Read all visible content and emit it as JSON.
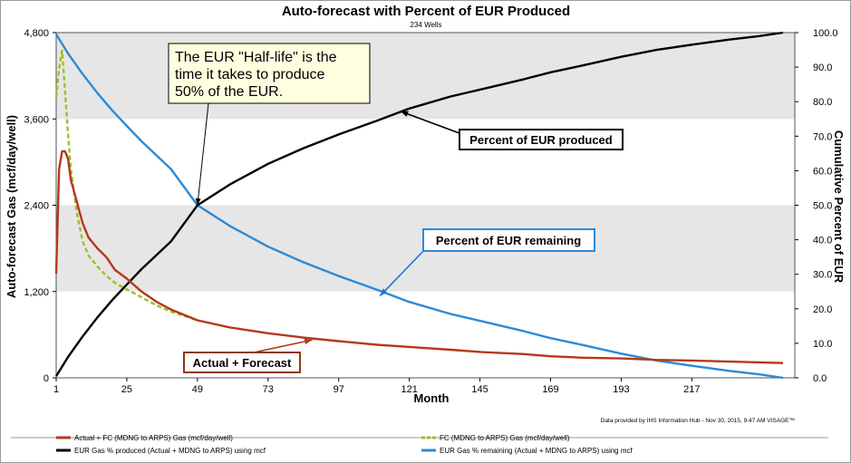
{
  "colors": {
    "band": "#e6e6e6",
    "actual": "#b5381b",
    "forecast": "#9bbf2a",
    "produced": "#000000",
    "remaining": "#2b8ad8",
    "callout_fill": "#ffffe0"
  },
  "chart_data": {
    "type": "line",
    "title": "Auto-forecast with Percent of EUR Produced",
    "subtitle": "234 Wells",
    "xlabel": "Month",
    "ylabel_left": "Auto-forecast Gas (mcf/day/well)",
    "ylabel_right": "Cumulative Percent of EUR",
    "xlim": [
      1,
      252
    ],
    "ylim_left": [
      0,
      4800
    ],
    "ylim_right": [
      0,
      100
    ],
    "x_ticks": [
      "1",
      "25",
      "49",
      "73",
      "97",
      "121",
      "145",
      "169",
      "193",
      "217"
    ],
    "y_left_ticks": [
      "0",
      "1,200",
      "2,400",
      "3,600",
      "4,800"
    ],
    "y_right_ticks": [
      "0.0",
      "10.0",
      "20.0",
      "30.0",
      "40.0",
      "50.0",
      "60.0",
      "70.0",
      "80.0",
      "90.0",
      "100.0"
    ],
    "grid_bands": true,
    "series": [
      {
        "name": "Actual + FC (MDNG to ARPS) Gas (mcf/day/well)",
        "axis": "left",
        "x": [
          1,
          2,
          3,
          4,
          5,
          6,
          7,
          8,
          10,
          12,
          15,
          18,
          21,
          25,
          30,
          35,
          40,
          49,
          60,
          73,
          85,
          97,
          110,
          121,
          135,
          145,
          160,
          169,
          180,
          193,
          205,
          217,
          230,
          248
        ],
        "values": [
          1450,
          2900,
          3150,
          3150,
          3050,
          2750,
          2600,
          2450,
          2150,
          1950,
          1800,
          1680,
          1500,
          1380,
          1200,
          1060,
          950,
          800,
          700,
          620,
          560,
          510,
          460,
          430,
          390,
          360,
          330,
          300,
          280,
          270,
          250,
          240,
          225,
          205
        ]
      },
      {
        "name": "FC (MDNG to ARPS) Gas (mcf/day/well)",
        "axis": "left",
        "x": [
          1,
          2,
          3,
          4,
          5,
          6,
          7,
          8,
          10,
          12,
          15,
          18,
          21,
          25,
          30,
          35,
          40,
          49
        ],
        "values": [
          3900,
          4300,
          4550,
          4000,
          3400,
          2900,
          2600,
          2300,
          1900,
          1700,
          1550,
          1420,
          1320,
          1230,
          1120,
          1010,
          920,
          800
        ]
      },
      {
        "name": "EUR Gas % produced (Actual + MDNG to ARPS) using mcf",
        "axis": "right",
        "x": [
          1,
          5,
          10,
          15,
          20,
          25,
          30,
          35,
          40,
          49,
          60,
          73,
          85,
          97,
          110,
          121,
          135,
          145,
          160,
          169,
          180,
          193,
          205,
          217,
          230,
          240,
          248
        ],
        "values": [
          0.5,
          6,
          12,
          17.5,
          22.5,
          27,
          31.5,
          35.5,
          39.5,
          50,
          56,
          62,
          66.5,
          70.5,
          74.5,
          78,
          81.5,
          83.5,
          86.5,
          88.5,
          90.5,
          93,
          95,
          96.5,
          98,
          99,
          100
        ]
      },
      {
        "name": "EUR Gas % remaining (Actual + MDNG to ARPS) using mcf",
        "axis": "right",
        "x": [
          1,
          5,
          10,
          15,
          20,
          25,
          30,
          35,
          40,
          49,
          60,
          73,
          85,
          97,
          110,
          121,
          135,
          145,
          160,
          169,
          180,
          193,
          205,
          217,
          230,
          240,
          248
        ],
        "values": [
          99.5,
          94,
          88,
          82.5,
          77.5,
          73,
          68.5,
          64.5,
          60.5,
          50,
          44,
          38,
          33.5,
          29.5,
          25.5,
          22,
          18.5,
          16.5,
          13.5,
          11.5,
          9.5,
          7,
          5,
          3.5,
          2,
          1,
          0
        ]
      }
    ],
    "annotations": [
      {
        "id": "half-life",
        "text_lines": [
          "The EUR \"Half-life\" is the",
          "time it takes to produce",
          "50% of the EUR."
        ],
        "target_x": 49,
        "target_right": 50
      },
      {
        "id": "produced",
        "text": "Percent of EUR produced",
        "target_x": 118,
        "target_right": 78
      },
      {
        "id": "remaining",
        "text": "Percent of EUR remaining",
        "target_x": 111,
        "target_right": 24.5
      },
      {
        "id": "actual",
        "text": "Actual + Forecast",
        "target_x": 88,
        "target_left": 540
      }
    ],
    "credit": "Data provided by IHS Information Hub - Nov 30, 2015, 9:47 AM  VISAGE™",
    "legend_position": "bottom"
  }
}
